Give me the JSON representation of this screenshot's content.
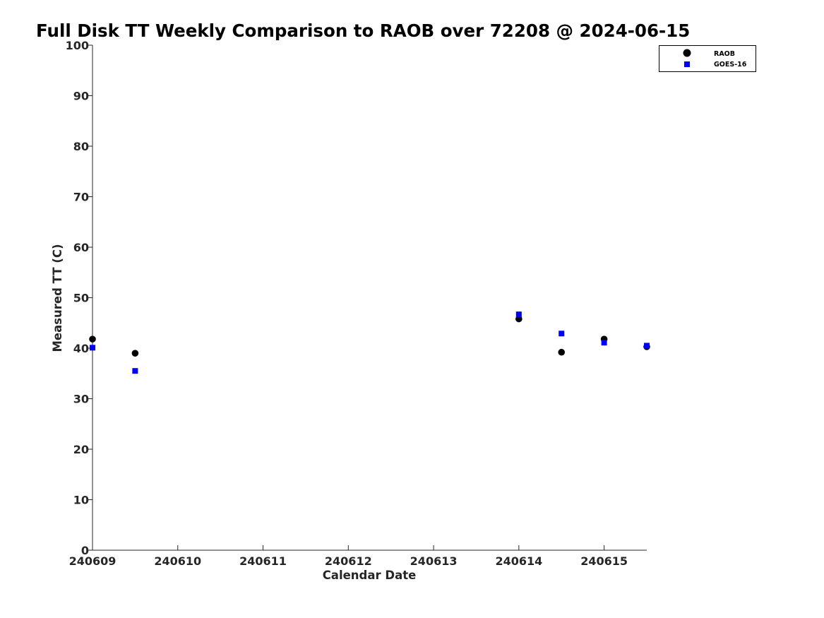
{
  "chart_data": {
    "type": "scatter",
    "title": "Full Disk TT Weekly Comparison to RAOB over 72208 @ 2024-06-15",
    "xlabel": "Calendar Date",
    "ylabel": "Measured TT (C)",
    "x_tick_labels": [
      "240609",
      "240610",
      "240611",
      "240612",
      "240613",
      "240614",
      "240615"
    ],
    "y_ticks": [
      0,
      10,
      20,
      30,
      40,
      50,
      60,
      70,
      80,
      90,
      100
    ],
    "xlim": [
      "2024-06-09T00:00",
      "2024-06-15T12:00"
    ],
    "ylim": [
      0,
      100
    ],
    "grid": false,
    "legend_position": "top-right",
    "series": [
      {
        "name": "RAOB",
        "marker": "circle",
        "color": "#000000",
        "points": [
          {
            "x": "2024-06-09T00:00",
            "y": 41.8
          },
          {
            "x": "2024-06-09T12:00",
            "y": 39.0
          },
          {
            "x": "2024-06-14T00:00",
            "y": 45.8
          },
          {
            "x": "2024-06-14T12:00",
            "y": 39.2
          },
          {
            "x": "2024-06-15T00:00",
            "y": 41.8
          },
          {
            "x": "2024-06-15T12:00",
            "y": 40.3
          }
        ]
      },
      {
        "name": "GOES-16",
        "marker": "square",
        "color": "#0000ff",
        "points": [
          {
            "x": "2024-06-09T00:00",
            "y": 40.1
          },
          {
            "x": "2024-06-09T12:00",
            "y": 35.5
          },
          {
            "x": "2024-06-14T00:00",
            "y": 46.7
          },
          {
            "x": "2024-06-14T12:00",
            "y": 42.9
          },
          {
            "x": "2024-06-15T00:00",
            "y": 41.1
          },
          {
            "x": "2024-06-15T12:00",
            "y": 40.5
          }
        ]
      }
    ]
  }
}
